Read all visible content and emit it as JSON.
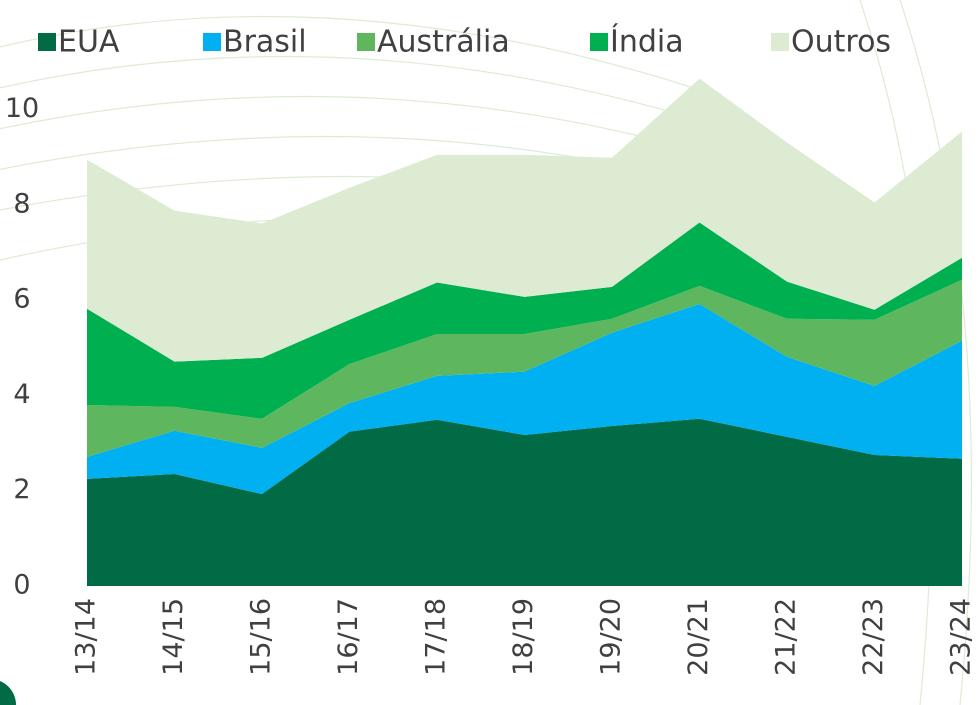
{
  "chart_data": {
    "type": "stacked-area",
    "categories": [
      "13/14",
      "14/15",
      "15/16",
      "16/17",
      "17/18",
      "18/19",
      "19/20",
      "20/21",
      "21/22",
      "22/23",
      "23/24"
    ],
    "series": [
      {
        "name": "EUA",
        "color": "#006b45",
        "values": [
          2.25,
          2.35,
          1.93,
          3.24,
          3.49,
          3.17,
          3.36,
          3.51,
          3.13,
          2.75,
          2.67
        ]
      },
      {
        "name": "Brasil",
        "color": "#00b0f0",
        "values": [
          0.46,
          0.91,
          0.97,
          0.6,
          0.92,
          1.33,
          1.96,
          2.41,
          1.68,
          1.45,
          2.48
        ]
      },
      {
        "name": "Austrália",
        "color": "#5eb65e",
        "values": [
          1.09,
          0.5,
          0.61,
          0.82,
          0.88,
          0.79,
          0.29,
          0.38,
          0.8,
          1.39,
          1.28
        ]
      },
      {
        "name": "Índia",
        "color": "#00b050",
        "values": [
          2.02,
          0.95,
          1.28,
          0.93,
          1.08,
          0.78,
          0.67,
          1.33,
          0.78,
          0.21,
          0.46
        ]
      },
      {
        "name": "Outros",
        "color": "#dcebd2",
        "values": [
          3.13,
          3.17,
          2.82,
          2.77,
          2.68,
          2.98,
          2.71,
          3.02,
          2.92,
          2.25,
          2.65
        ]
      }
    ],
    "ylim": [
      0,
      11
    ],
    "yticks": [
      0,
      2,
      4,
      6,
      8,
      10
    ],
    "grid": false
  }
}
